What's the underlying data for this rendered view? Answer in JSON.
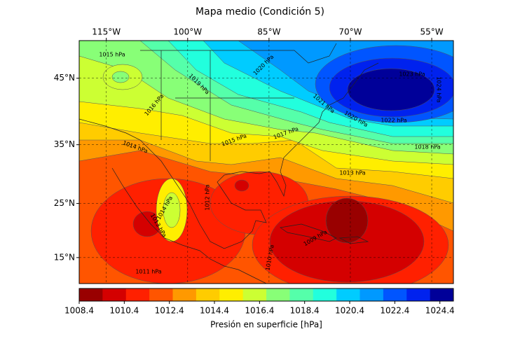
{
  "title": "Mapa medio (Condición 5)",
  "map": {
    "type": "contour-map",
    "projection": "mercator",
    "xlim": [
      -120,
      -51
    ],
    "ylim": [
      10,
      50
    ],
    "xticks": [
      {
        "value": -115,
        "label": "115°W"
      },
      {
        "value": -100,
        "label": "100°W"
      },
      {
        "value": -85,
        "label": "85°W"
      },
      {
        "value": -70,
        "label": "70°W"
      },
      {
        "value": -55,
        "label": "55°W"
      }
    ],
    "yticks": [
      {
        "value": 45,
        "label": "45°N"
      },
      {
        "value": 35,
        "label": "35°N"
      },
      {
        "value": 25,
        "label": "25°N"
      },
      {
        "value": 15,
        "label": "15°N"
      }
    ],
    "grid": true,
    "contour_labels": [
      "1015 hPa",
      "1016 hPa",
      "1019 hPa",
      "1020 hPa",
      "1014 hPa",
      "1015 hPa",
      "1017 hPa",
      "1021 hPa",
      "1020 hPa",
      "1022 hPa",
      "1018 hPa",
      "1013 hPa",
      "1012 hPa",
      "1014 hPa",
      "1013 hPa",
      "1011 hPa",
      "1010 hPa",
      "1009 hPa",
      "1024 hPa",
      "1023 hPa"
    ]
  },
  "colorbar": {
    "label": "Presión en superficie [hPa]",
    "lim": [
      1008.4,
      1025.0
    ],
    "ticks": [
      1008.4,
      1010.4,
      1012.4,
      1014.4,
      1016.4,
      1018.4,
      1020.4,
      1022.4,
      1024.4
    ],
    "colors": [
      "#990000",
      "#d40000",
      "#ff2000",
      "#ff5500",
      "#ff9900",
      "#ffcc00",
      "#ffee00",
      "#ccff33",
      "#88ff77",
      "#55ffaa",
      "#22ffdd",
      "#00ccff",
      "#0099ff",
      "#0055ff",
      "#0022ee",
      "#000099"
    ]
  }
}
